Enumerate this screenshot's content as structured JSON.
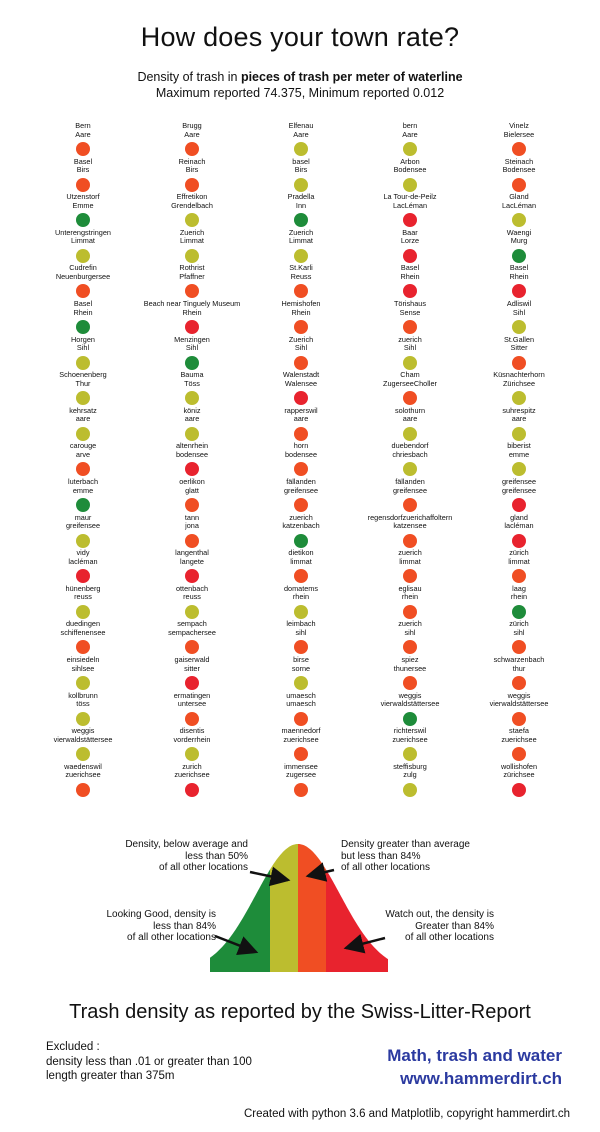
{
  "header": {
    "title": "How does your town rate?",
    "subtitle_prefix": "Density of trash in ",
    "subtitle_bold": "pieces of trash per meter of waterline",
    "subtitle_line2": "Maximum reported 74.375, Minimum reported 0.012"
  },
  "colors": {
    "good": "#1e8c3a",
    "below_average": "#bcbd2f",
    "above_average": "#f04e23",
    "high": "#e8232e"
  },
  "chart_data": {
    "type": "dot-grid",
    "value_legend": [
      "good",
      "below_average",
      "above_average",
      "high"
    ],
    "locations": [
      [
        "Bern",
        "Aare",
        "above_average"
      ],
      [
        "Brugg",
        "Aare",
        "above_average"
      ],
      [
        "Elfenau",
        "Aare",
        "below_average"
      ],
      [
        "bern",
        "Aare",
        "below_average"
      ],
      [
        "Vinelz",
        "Bielersee",
        "above_average"
      ],
      [
        "Basel",
        "Birs",
        "above_average"
      ],
      [
        "Reinach",
        "Birs",
        "above_average"
      ],
      [
        "basel",
        "Birs",
        "below_average"
      ],
      [
        "Arbon",
        "Bodensee",
        "below_average"
      ],
      [
        "Steinach",
        "Bodensee",
        "above_average"
      ],
      [
        "Utzenstorf",
        "Emme",
        "good"
      ],
      [
        "Effretikon",
        "Grendelbach",
        "below_average"
      ],
      [
        "Pradella",
        "Inn",
        "good"
      ],
      [
        "La Tour-de-Peilz",
        "LacLéman",
        "high"
      ],
      [
        "Gland",
        "LacLéman",
        "below_average"
      ],
      [
        "Unterengstringen",
        "Limmat",
        "below_average"
      ],
      [
        "Zuerich",
        "Limmat",
        "below_average"
      ],
      [
        "Zuerich",
        "Limmat",
        "below_average"
      ],
      [
        "Baar",
        "Lorze",
        "high"
      ],
      [
        "Waengi",
        "Murg",
        "good"
      ],
      [
        "Cudrefin",
        "Neuenburgersee",
        "above_average"
      ],
      [
        "Rothrist",
        "Pfaffner",
        "above_average"
      ],
      [
        "St.Karli",
        "Reuss",
        "above_average"
      ],
      [
        "Basel",
        "Rhein",
        "high"
      ],
      [
        "Basel",
        "Rhein",
        "high"
      ],
      [
        "Basel",
        "Rhein",
        "good"
      ],
      [
        "Beach near Tinguely Museum",
        "Rhein",
        "high"
      ],
      [
        "Hemishofen",
        "Rhein",
        "above_average"
      ],
      [
        "Törishaus",
        "Sense",
        "above_average"
      ],
      [
        "Adliswil",
        "Sihl",
        "below_average"
      ],
      [
        "Horgen",
        "Sihl",
        "below_average"
      ],
      [
        "Menzingen",
        "Sihl",
        "good"
      ],
      [
        "Zuerich",
        "Sihl",
        "above_average"
      ],
      [
        "zuerich",
        "Sihl",
        "below_average"
      ],
      [
        "St.Gallen",
        "Sitter",
        "above_average"
      ],
      [
        "Schoenenberg",
        "Thur",
        "below_average"
      ],
      [
        "Bauma",
        "Töss",
        "below_average"
      ],
      [
        "Walenstadt",
        "Walensee",
        "high"
      ],
      [
        "Cham",
        "ZugerseeCholler",
        "above_average"
      ],
      [
        "Küsnachterhorn",
        "Zürichsee",
        "below_average"
      ],
      [
        "kehrsatz",
        "aare",
        "below_average"
      ],
      [
        "köniz",
        "aare",
        "below_average"
      ],
      [
        "rapperswil",
        "aare",
        "above_average"
      ],
      [
        "solothurn",
        "aare",
        "below_average"
      ],
      [
        "suhrespitz",
        "aare",
        "below_average"
      ],
      [
        "carouge",
        "arve",
        "above_average"
      ],
      [
        "altenrhein",
        "bodensee",
        "high"
      ],
      [
        "horn",
        "bodensee",
        "above_average"
      ],
      [
        "duebendorf",
        "chriesbach",
        "below_average"
      ],
      [
        "biberist",
        "emme",
        "below_average"
      ],
      [
        "luterbach",
        "emme",
        "good"
      ],
      [
        "oerlikon",
        "glatt",
        "above_average"
      ],
      [
        "fällanden",
        "greifensee",
        "above_average"
      ],
      [
        "fällanden",
        "greifensee",
        "above_average"
      ],
      [
        "greifensee",
        "greifensee",
        "high"
      ],
      [
        "maur",
        "greifensee",
        "below_average"
      ],
      [
        "tann",
        "jona",
        "above_average"
      ],
      [
        "zuerich",
        "katzenbach",
        "good"
      ],
      [
        "regensdorfzuerichaffoltern",
        "katzensee",
        "above_average"
      ],
      [
        "gland",
        "lacléman",
        "high"
      ],
      [
        "vidy",
        "lacléman",
        "high"
      ],
      [
        "langenthal",
        "langete",
        "high"
      ],
      [
        "dietikon",
        "limmat",
        "above_average"
      ],
      [
        "zuerich",
        "limmat",
        "above_average"
      ],
      [
        "zürich",
        "limmat",
        "above_average"
      ],
      [
        "hünenberg",
        "reuss",
        "below_average"
      ],
      [
        "ottenbach",
        "reuss",
        "below_average"
      ],
      [
        "domatems",
        "rhein",
        "below_average"
      ],
      [
        "eglisau",
        "rhein",
        "above_average"
      ],
      [
        "laag",
        "rhein",
        "good"
      ],
      [
        "duedingen",
        "schiffenensee",
        "above_average"
      ],
      [
        "sempach",
        "sempachersee",
        "above_average"
      ],
      [
        "leimbach",
        "sihl",
        "above_average"
      ],
      [
        "zuerich",
        "sihl",
        "above_average"
      ],
      [
        "zürich",
        "sihl",
        "above_average"
      ],
      [
        "einsiedeln",
        "sihlsee",
        "below_average"
      ],
      [
        "gaiserwald",
        "sitter",
        "high"
      ],
      [
        "birse",
        "sorne",
        "below_average"
      ],
      [
        "spiez",
        "thunersee",
        "above_average"
      ],
      [
        "schwarzenbach",
        "thur",
        "above_average"
      ],
      [
        "kollbrunn",
        "töss",
        "below_average"
      ],
      [
        "ermatingen",
        "untersee",
        "above_average"
      ],
      [
        "umaesch",
        "umaesch",
        "above_average"
      ],
      [
        "weggis",
        "vierwaldstättersee",
        "good"
      ],
      [
        "weggis",
        "vierwaldstättersee",
        "above_average"
      ],
      [
        "weggis",
        "vierwaldstättersee",
        "below_average"
      ],
      [
        "disentis",
        "vorderrhein",
        "below_average"
      ],
      [
        "maennedorf",
        "zuerichsee",
        "above_average"
      ],
      [
        "richterswil",
        "zuerichsee",
        "below_average"
      ],
      [
        "staefa",
        "zuerichsee",
        "above_average"
      ],
      [
        "waedenswil",
        "zuerichsee",
        "above_average"
      ],
      [
        "zurich",
        "zuerichsee",
        "high"
      ],
      [
        "immensee",
        "zugersee",
        "above_average"
      ],
      [
        "steffisburg",
        "zulg",
        "below_average"
      ],
      [
        "wollishofen",
        "zürichsee",
        "high"
      ]
    ]
  },
  "legend": {
    "below_avg_text": [
      "Density, below average and",
      "less than 50%",
      "of all other locations"
    ],
    "above_avg_text": [
      "Density greater than average",
      "but less than 84%",
      "of all other locations"
    ],
    "good_text": [
      "Looking Good, density is",
      "less than 84%",
      "of all other locations"
    ],
    "watch_text": [
      "Watch out, the density is",
      "Greater than 84%",
      "of all other locations"
    ]
  },
  "footer": {
    "title": "Trash density as reported by the Swiss-Litter-Report",
    "excluded_label": "Excluded :",
    "excluded_line1": "density less than .01 or greater than 100",
    "excluded_line2": "length greater than 375m",
    "brand_line1": "Math, trash and water",
    "brand_line2": "www.hammerdirt.ch",
    "credit": "Created with python 3.6 and Matplotlib, copyright hammerdirt.ch"
  }
}
